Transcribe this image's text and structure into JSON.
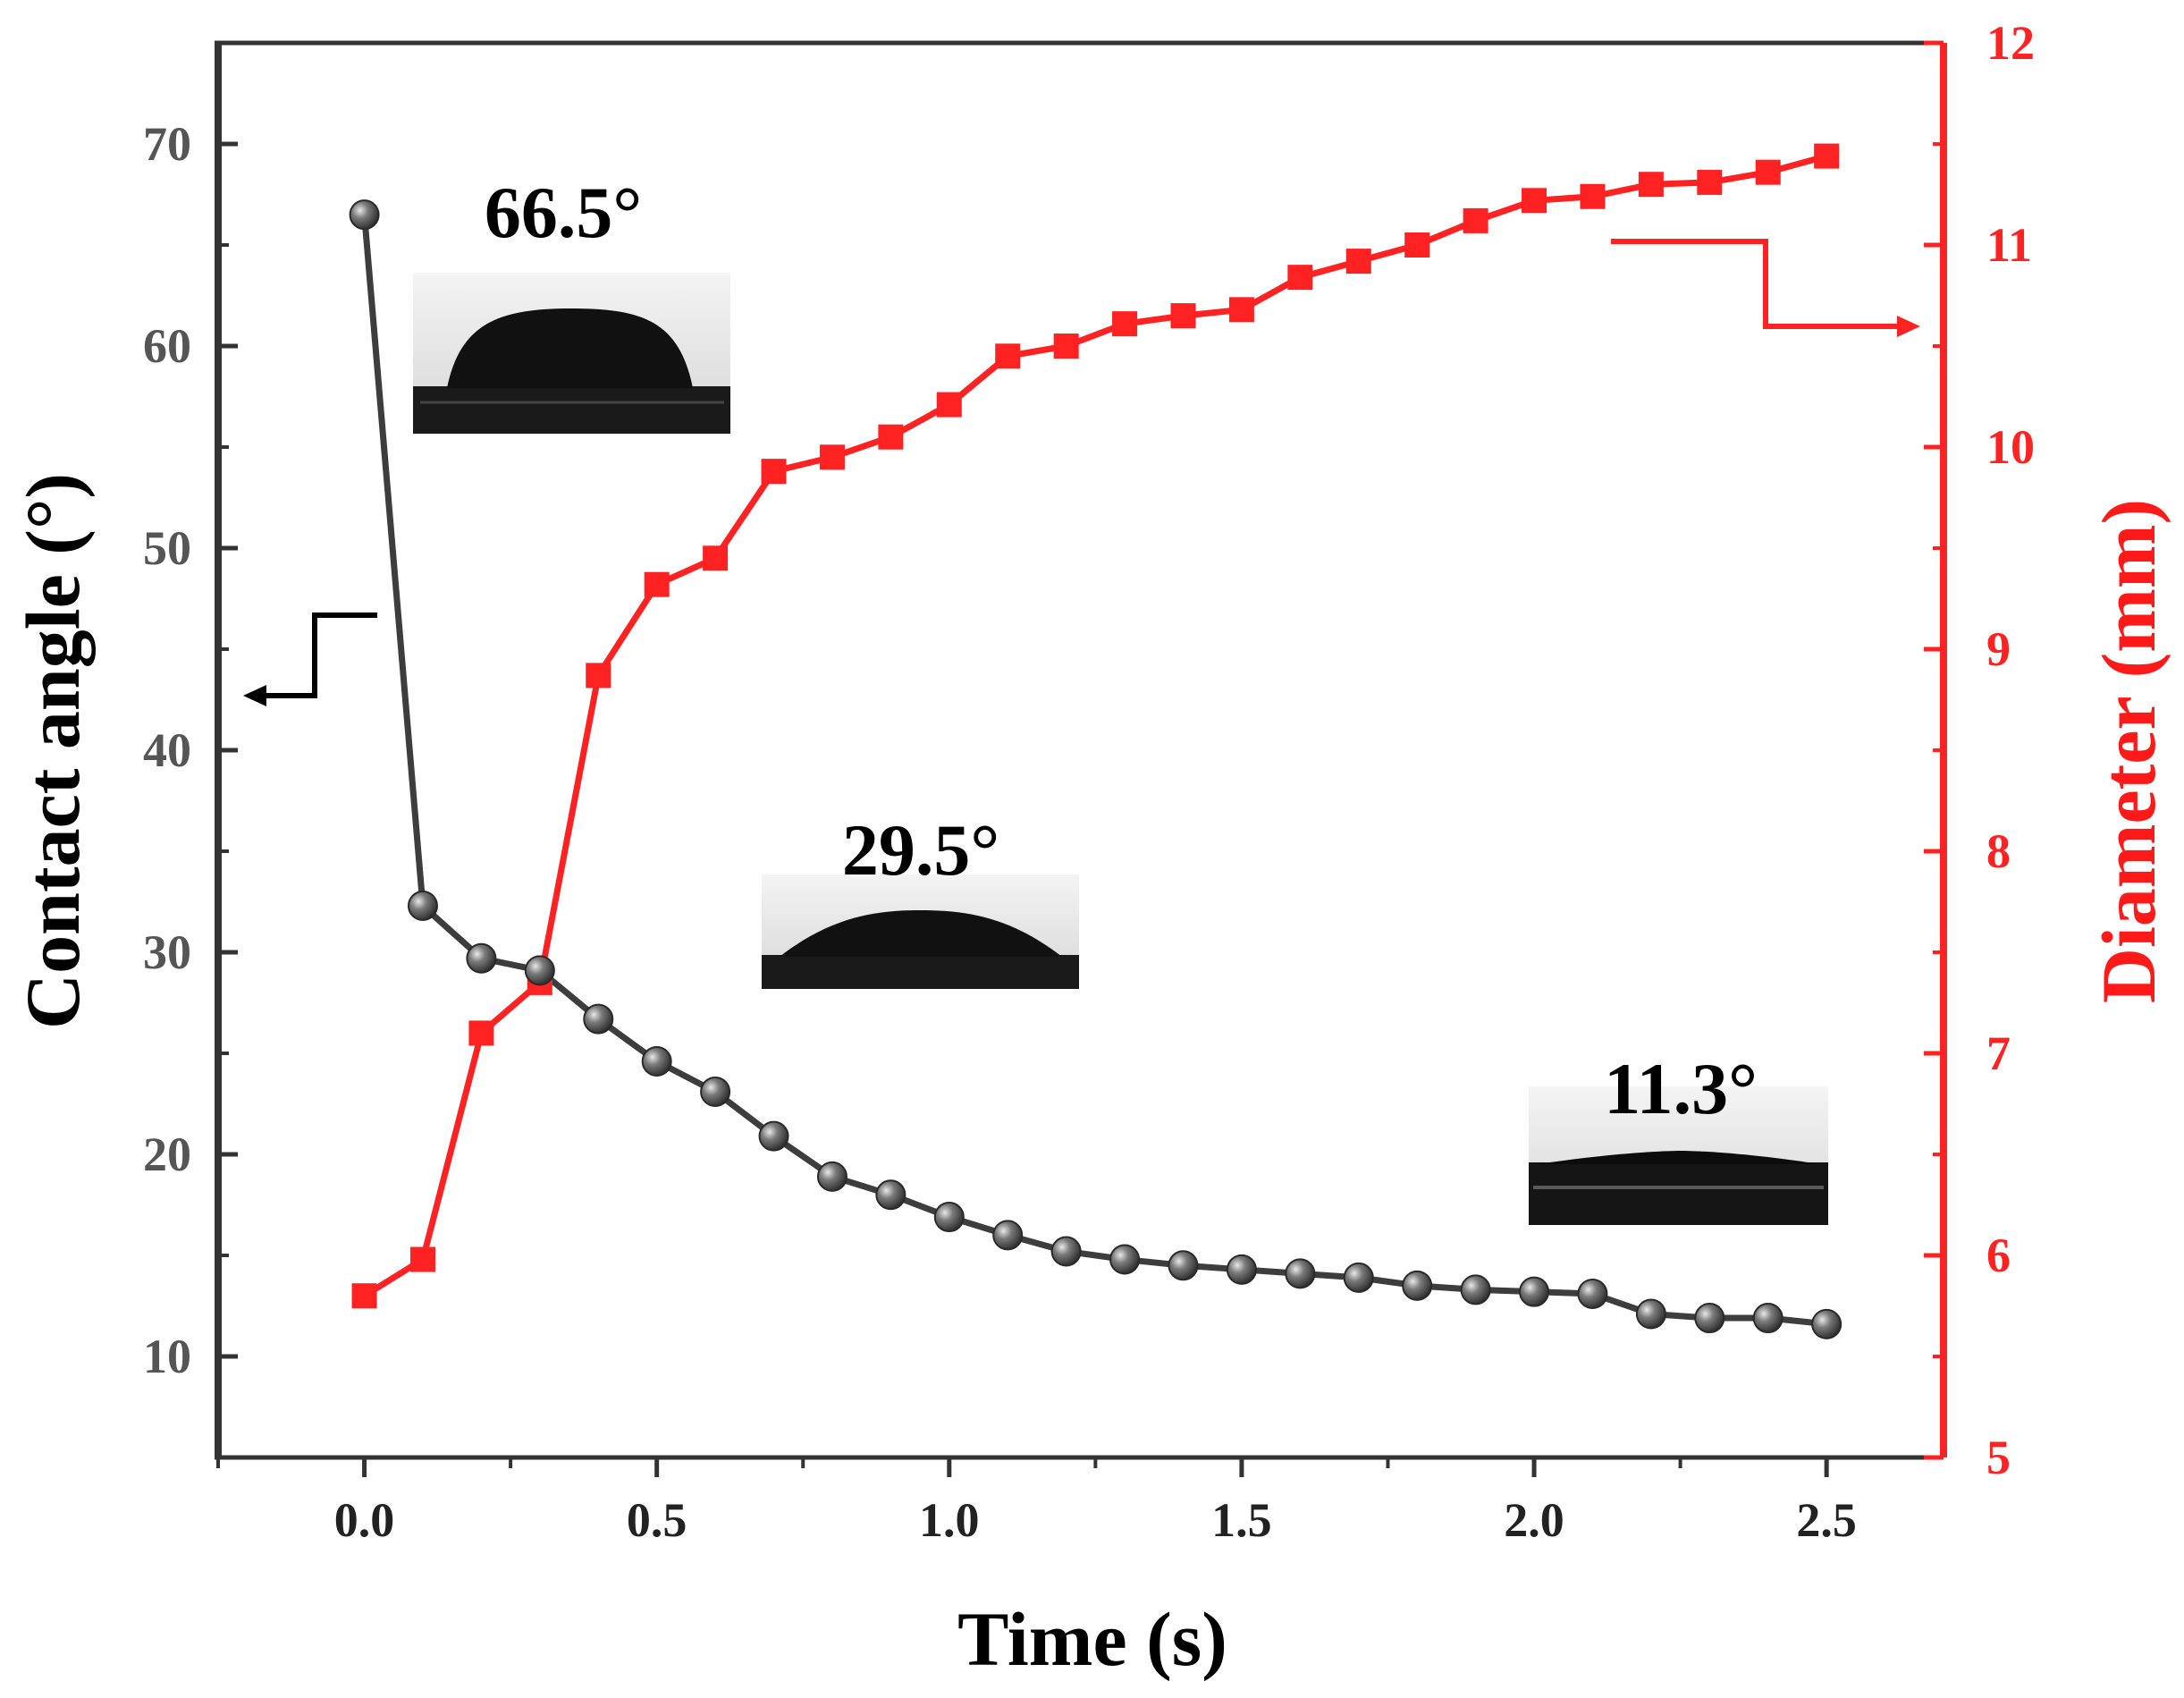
{
  "chart_data": {
    "type": "line",
    "title": "",
    "xlabel": "Time (s)",
    "ylabel_left": "Contact angle (°)",
    "ylabel_right": "Diameter (mm)",
    "xlim": [
      -0.25,
      2.7
    ],
    "ylim_left": [
      5,
      75
    ],
    "ylim_right": [
      5,
      12
    ],
    "x_ticks": [
      "0.0",
      "0.5",
      "1.0",
      "1.5",
      "2.0",
      "2.5"
    ],
    "y_left_ticks": [
      "10",
      "20",
      "30",
      "40",
      "50",
      "60",
      "70"
    ],
    "y_right_ticks": [
      "5",
      "6",
      "7",
      "8",
      "9",
      "10",
      "11",
      "12"
    ],
    "grid": false,
    "colors": {
      "contact_angle": "#3d3d3d",
      "diameter": "#ff2222",
      "axis": "#333333"
    },
    "series": [
      {
        "name": "Contact angle",
        "axis": "left",
        "marker": "sphere",
        "x": [
          0.0,
          0.1,
          0.2,
          0.3,
          0.4,
          0.5,
          0.6,
          0.7,
          0.8,
          0.9,
          1.0,
          1.1,
          1.2,
          1.3,
          1.4,
          1.5,
          1.6,
          1.7,
          1.8,
          1.9,
          2.0,
          2.1,
          2.2,
          2.3,
          2.4,
          2.5
        ],
        "values": [
          66.5,
          32.3,
          29.7,
          29.1,
          26.7,
          24.6,
          23.1,
          20.9,
          18.9,
          18.0,
          16.9,
          16.0,
          15.2,
          14.8,
          14.5,
          14.3,
          14.1,
          13.9,
          13.5,
          13.3,
          13.2,
          13.1,
          12.1,
          11.9,
          11.9,
          11.6
        ]
      },
      {
        "name": "Diameter",
        "axis": "right",
        "marker": "square",
        "x": [
          0.0,
          0.1,
          0.2,
          0.3,
          0.4,
          0.5,
          0.6,
          0.7,
          0.8,
          0.9,
          1.0,
          1.1,
          1.2,
          1.3,
          1.4,
          1.5,
          1.6,
          1.7,
          1.8,
          1.9,
          2.0,
          2.1,
          2.2,
          2.3,
          2.4,
          2.5
        ],
        "values": [
          5.8,
          5.98,
          7.1,
          7.35,
          8.87,
          9.32,
          9.45,
          9.88,
          9.95,
          10.05,
          10.21,
          10.45,
          10.5,
          10.61,
          10.65,
          10.68,
          10.84,
          10.92,
          11.0,
          11.12,
          11.22,
          11.24,
          11.3,
          11.31,
          11.36,
          11.44
        ]
      }
    ],
    "annotations": [
      {
        "id": "first",
        "text": "66.5°"
      },
      {
        "id": "second",
        "text": "29.5°"
      },
      {
        "id": "third",
        "text": "11.3°"
      }
    ]
  }
}
